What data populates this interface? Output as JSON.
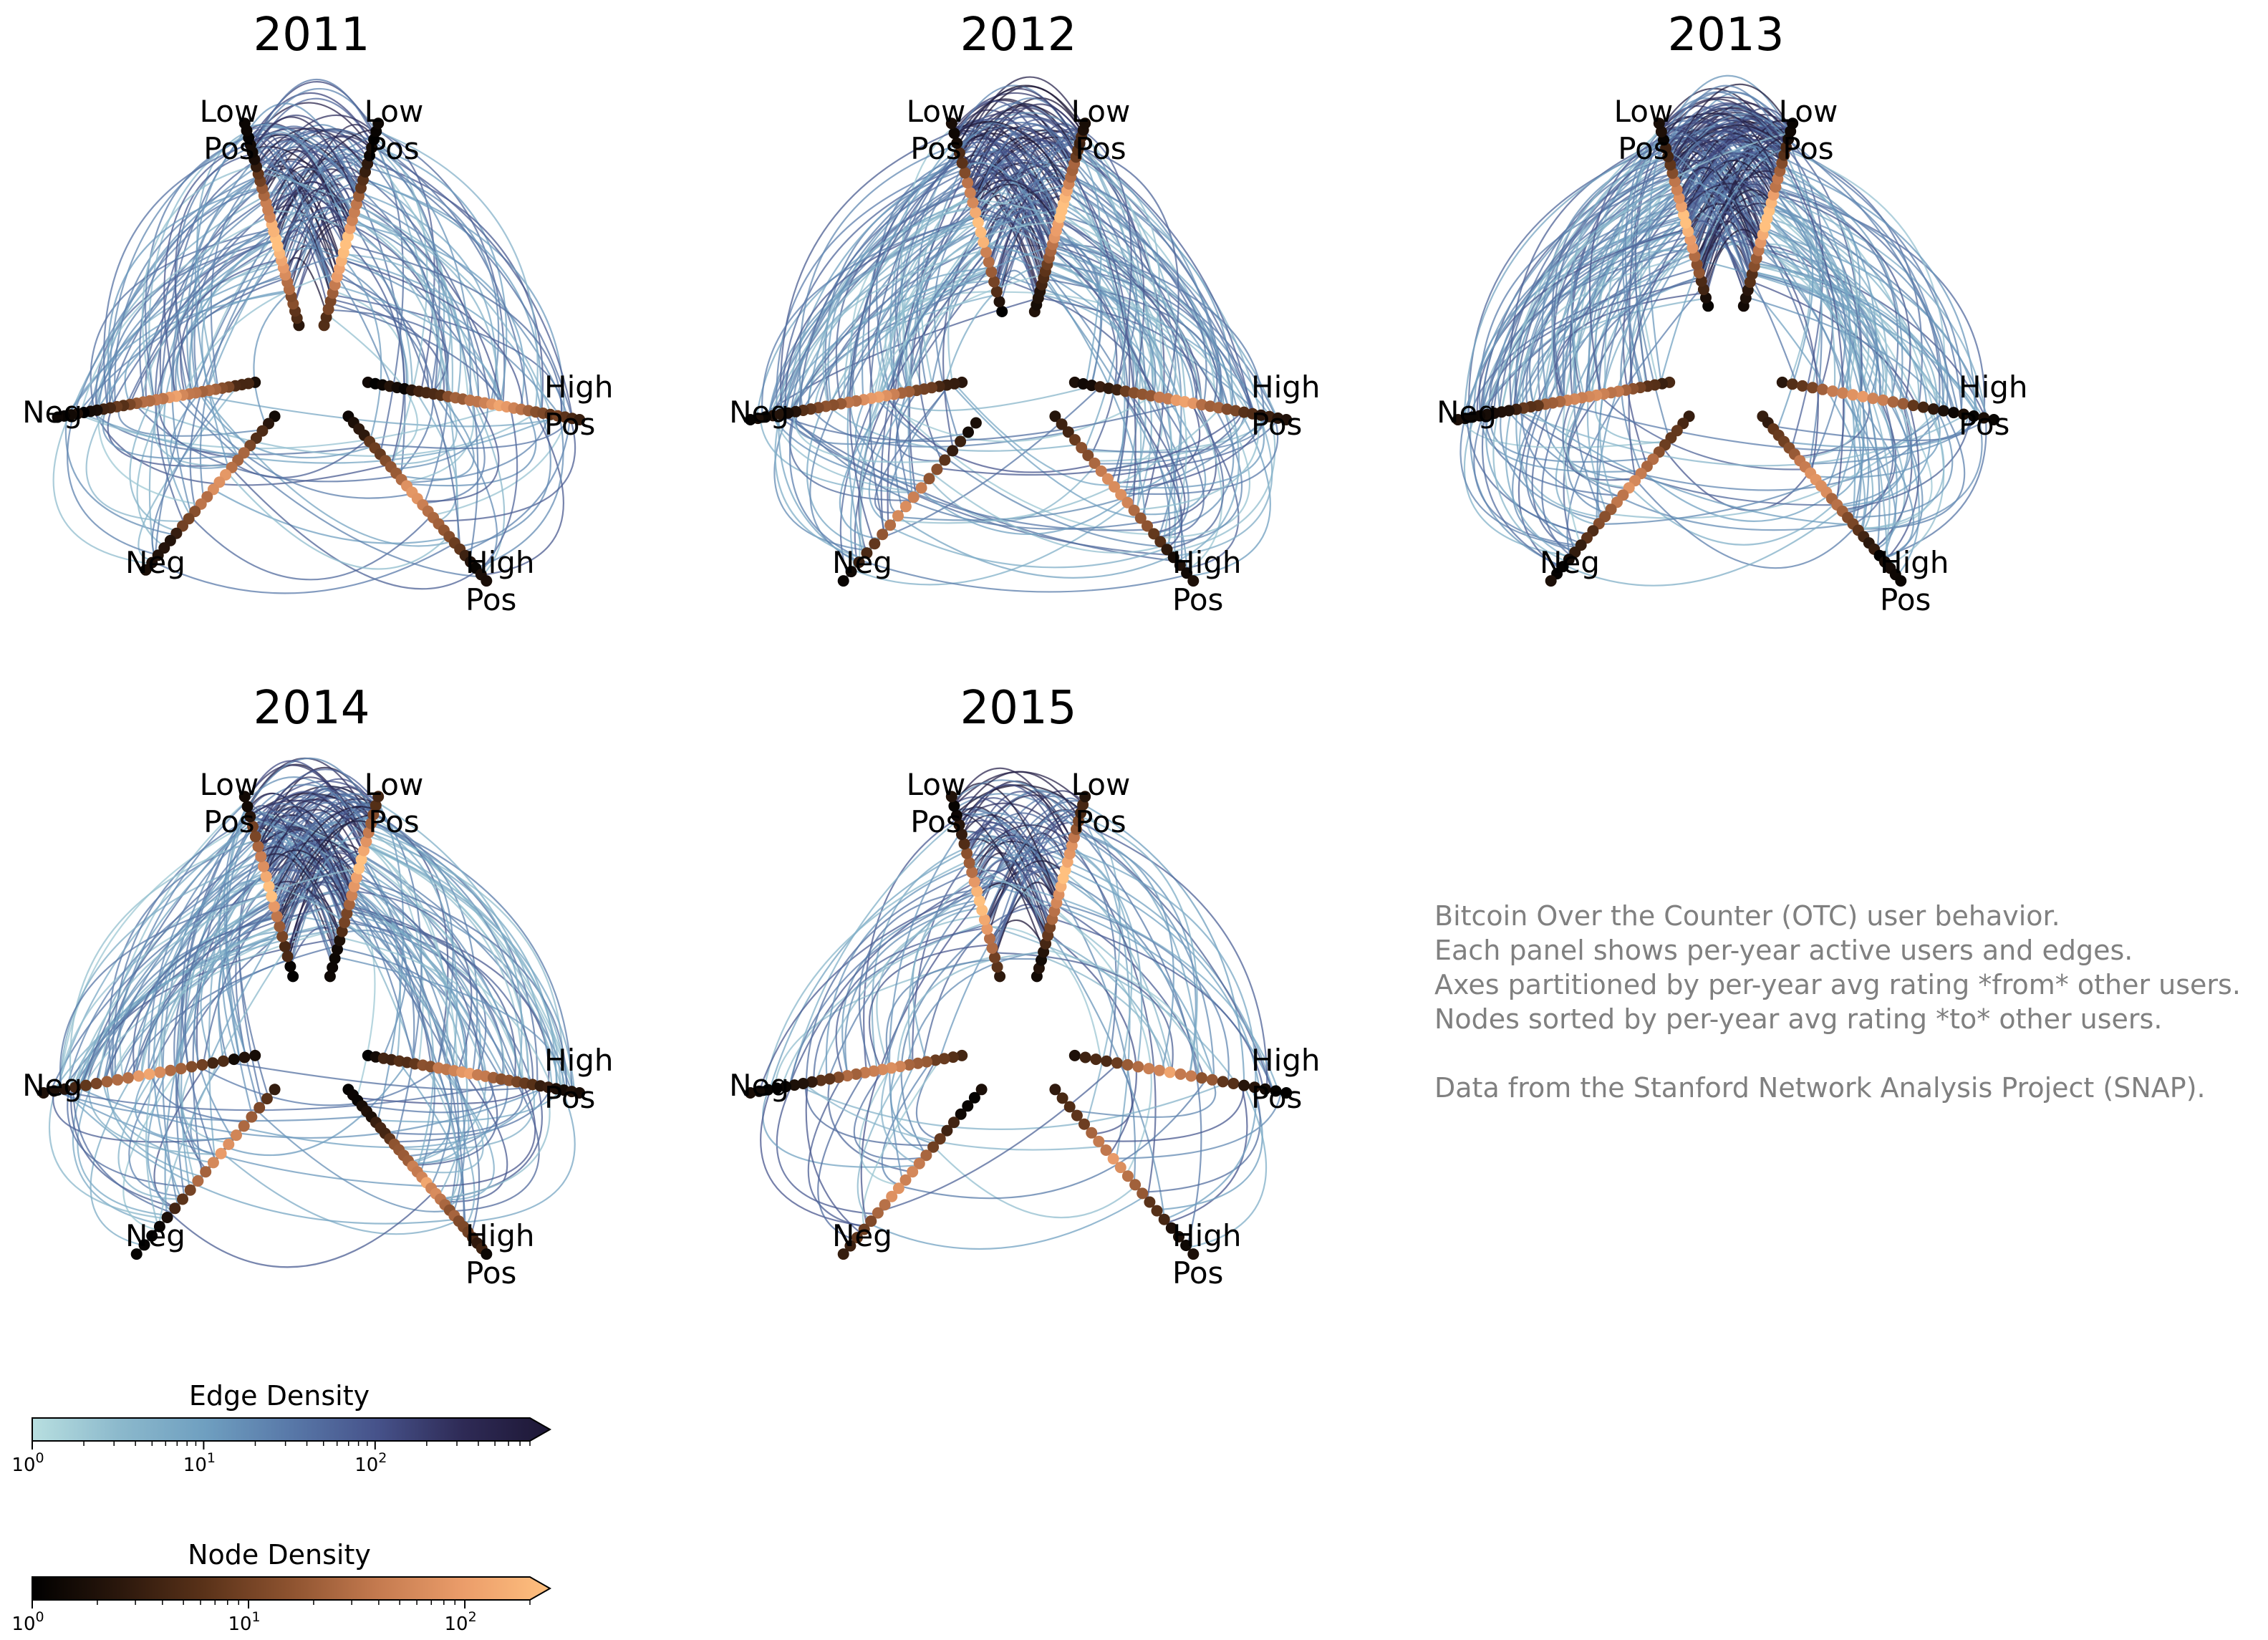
{
  "chart_data": {
    "type": "hive-plot",
    "panels": [
      {
        "title": "2011",
        "axis_labels": [
          [
            "Low",
            "Pos"
          ],
          [
            "Low",
            "Pos"
          ],
          [
            "High",
            "Pos"
          ],
          [
            "High",
            "Pos"
          ],
          [
            "Neg"
          ],
          [
            "Neg"
          ]
        ],
        "axes": {
          "a1": {
            "inner": 0.17,
            "outer": 0.9
          },
          "a2": {
            "inner": 0.17,
            "outer": 0.9
          },
          "a3": {
            "inner": 0.2,
            "outer": 0.95
          },
          "a4": {
            "inner": 0.2,
            "outer": 0.95
          },
          "a5": {
            "inner": 0.2,
            "outer": 0.9
          },
          "a6": {
            "inner": 0.2,
            "outer": 0.9
          }
        },
        "edge_count": 260
      },
      {
        "title": "2012",
        "axis_labels": [
          [
            "Low",
            "Pos"
          ],
          [
            "Low",
            "Pos"
          ],
          [
            "High",
            "Pos"
          ],
          [
            "High",
            "Pos"
          ],
          [
            "Neg"
          ],
          [
            "Neg"
          ]
        ],
        "axes": {
          "a1": {
            "inner": 0.22,
            "outer": 0.9
          },
          "a2": {
            "inner": 0.22,
            "outer": 0.9
          },
          "a3": {
            "inner": 0.2,
            "outer": 0.95
          },
          "a4": {
            "inner": 0.2,
            "outer": 0.95
          },
          "a5": {
            "inner": 0.23,
            "outer": 0.95
          },
          "a6": {
            "inner": 0.2,
            "outer": 0.95
          }
        },
        "edge_count": 360
      },
      {
        "title": "2013",
        "axis_labels": [
          [
            "Low",
            "Pos"
          ],
          [
            "Low",
            "Pos"
          ],
          [
            "High",
            "Pos"
          ],
          [
            "High",
            "Pos"
          ],
          [
            "Neg"
          ],
          [
            "Neg"
          ]
        ],
        "axes": {
          "a1": {
            "inner": 0.24,
            "outer": 0.9
          },
          "a2": {
            "inner": 0.24,
            "outer": 0.9
          },
          "a3": {
            "inner": 0.2,
            "outer": 0.95
          },
          "a4": {
            "inner": 0.2,
            "outer": 0.95
          },
          "a5": {
            "inner": 0.2,
            "outer": 0.95
          },
          "a6": {
            "inner": 0.2,
            "outer": 0.95
          }
        },
        "edge_count": 420
      },
      {
        "title": "2014",
        "axis_labels": [
          [
            "Low",
            "Pos"
          ],
          [
            "Low",
            "Pos"
          ],
          [
            "High",
            "Pos"
          ],
          [
            "High",
            "Pos"
          ],
          [
            "Neg"
          ],
          [
            "Neg"
          ]
        ],
        "axes": {
          "a1": {
            "inner": 0.25,
            "outer": 0.9
          },
          "a2": {
            "inner": 0.25,
            "outer": 0.9
          },
          "a3": {
            "inner": 0.2,
            "outer": 0.95
          },
          "a4": {
            "inner": 0.2,
            "outer": 0.95
          },
          "a5": {
            "inner": 0.2,
            "outer": 0.95
          },
          "a6": {
            "inner": 0.2,
            "outer": 0.95
          }
        },
        "edge_count": 320
      },
      {
        "title": "2015",
        "axis_labels": [
          [
            "Low",
            "Pos"
          ],
          [
            "Low",
            "Pos"
          ],
          [
            "High",
            "Pos"
          ],
          [
            "High",
            "Pos"
          ],
          [
            "Neg"
          ],
          [
            "Neg"
          ]
        ],
        "axes": {
          "a1": {
            "inner": 0.25,
            "outer": 0.9
          },
          "a2": {
            "inner": 0.25,
            "outer": 0.9
          },
          "a3": {
            "inner": 0.2,
            "outer": 0.95
          },
          "a4": {
            "inner": 0.2,
            "outer": 0.95
          },
          "a5": {
            "inner": 0.2,
            "outer": 0.95
          },
          "a6": {
            "inner": 0.2,
            "outer": 0.95
          }
        },
        "edge_count": 170
      }
    ],
    "annotation": [
      "Bitcoin Over the Counter (OTC) user behavior.",
      "Each panel shows per-year active users and edges.",
      "Axes partitioned by per-year avg rating *from* other users.",
      "Nodes sorted by per-year avg rating *to* other users.",
      "",
      "Data from the Stanford Network Analysis Project (SNAP)."
    ],
    "colorbars": [
      {
        "title": "Edge Density",
        "scale": "log",
        "range": [
          1,
          800
        ],
        "ticks": [
          {
            "value": 1,
            "base": "10",
            "exp": "0"
          },
          {
            "value": 10,
            "base": "10",
            "exp": "1"
          },
          {
            "value": 100,
            "base": "10",
            "exp": "2"
          }
        ],
        "colors": [
          "#b8dfe0",
          "#8cb9cc",
          "#6f9fc0",
          "#5878a8",
          "#46528a",
          "#2e2a55",
          "#1d1735"
        ]
      },
      {
        "title": "Node Density",
        "scale": "log",
        "range": [
          1,
          200
        ],
        "ticks": [
          {
            "value": 1,
            "base": "10",
            "exp": "0"
          },
          {
            "value": 10,
            "base": "10",
            "exp": "1"
          },
          {
            "value": 100,
            "base": "10",
            "exp": "2"
          }
        ],
        "colors": [
          "#000000",
          "#2a170c",
          "#5a3219",
          "#8e5330",
          "#c47a4f",
          "#eb9d6a",
          "#ffc07f"
        ]
      }
    ],
    "grid": false
  }
}
